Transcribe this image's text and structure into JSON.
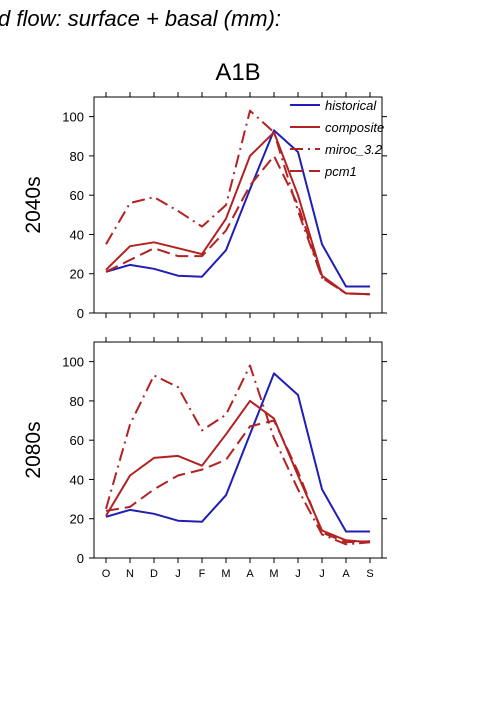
{
  "figure": {
    "title": "d flow: surface + basal (mm):",
    "scenario": "A1B"
  },
  "colors": {
    "historical": "#1f1fb4",
    "models": "#b22222",
    "axis": "#000000"
  },
  "chart_data": [
    {
      "type": "line",
      "panel_label": "2040s",
      "categories": [
        "O",
        "N",
        "D",
        "J",
        "F",
        "M",
        "A",
        "M",
        "J",
        "J",
        "A",
        "S"
      ],
      "ylim": [
        0,
        110
      ],
      "yticks": [
        0,
        20,
        40,
        60,
        80,
        100
      ],
      "grid": false,
      "legend_position": "top-right",
      "series": [
        {
          "name": "historical",
          "style": "solid",
          "color": "#1f1fb4",
          "values": [
            21,
            24.5,
            22.5,
            19,
            18.5,
            32,
            63,
            93,
            82,
            35,
            13.5,
            13.5
          ]
        },
        {
          "name": "composite",
          "style": "solid",
          "color": "#b22222",
          "values": [
            22,
            34,
            36,
            33,
            30,
            48,
            80,
            92,
            60,
            19,
            10,
            9.5
          ]
        },
        {
          "name": "miroc_3.2",
          "style": "dashdot",
          "color": "#b22222",
          "values": [
            35,
            56,
            59,
            52,
            44,
            55,
            103,
            92,
            52,
            18,
            10,
            9.5
          ]
        },
        {
          "name": "pcm1",
          "style": "dashed",
          "color": "#b22222",
          "values": [
            21,
            27,
            33,
            29,
            29,
            42,
            65,
            80,
            55,
            18,
            10,
            9.5
          ]
        }
      ]
    },
    {
      "type": "line",
      "panel_label": "2080s",
      "categories": [
        "O",
        "N",
        "D",
        "J",
        "F",
        "M",
        "A",
        "M",
        "J",
        "J",
        "A",
        "S"
      ],
      "ylim": [
        0,
        110
      ],
      "yticks": [
        0,
        20,
        40,
        60,
        80,
        100
      ],
      "grid": false,
      "series": [
        {
          "name": "historical",
          "style": "solid",
          "color": "#1f1fb4",
          "values": [
            21,
            24.5,
            22.5,
            19,
            18.5,
            32,
            63,
            94,
            83,
            35,
            13.5,
            13.5
          ]
        },
        {
          "name": "composite",
          "style": "solid",
          "color": "#b22222",
          "values": [
            21.5,
            42,
            51,
            52,
            47,
            63,
            80,
            71,
            42,
            14,
            9,
            8
          ]
        },
        {
          "name": "miroc_3.2",
          "style": "dashdot",
          "color": "#b22222",
          "values": [
            25,
            68,
            93,
            87,
            65,
            73,
            98,
            61,
            35,
            12,
            7,
            8
          ]
        },
        {
          "name": "pcm1",
          "style": "dashed",
          "color": "#b22222",
          "values": [
            24,
            26,
            35,
            42,
            45,
            50,
            67,
            70,
            44,
            13,
            8,
            8.5
          ]
        }
      ]
    }
  ]
}
